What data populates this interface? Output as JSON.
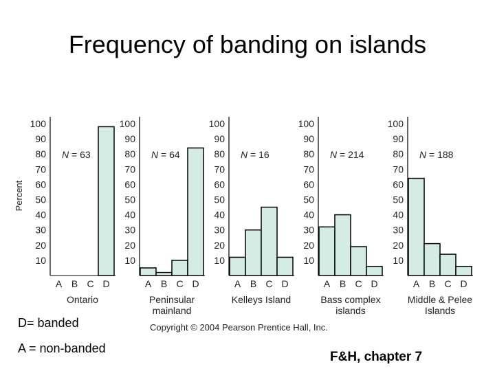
{
  "slide": {
    "title": "Frequency of banding on islands",
    "note_banded": "D= banded",
    "note_nonbanded": "A = non-banded",
    "copyright": "Copyright © 2004 Pearson Prentice Hall, Inc.",
    "footer": "F&H, chapter 7"
  },
  "colors": {
    "bar_fill": "#d4ebe6",
    "bar_stroke": "#000000",
    "axis": "#000000"
  },
  "chart_data": {
    "type": "bar",
    "ylabel": "Percent",
    "ylim": [
      0,
      100
    ],
    "yticks": [
      10,
      20,
      30,
      40,
      50,
      60,
      70,
      80,
      90,
      100
    ],
    "categories": [
      "A",
      "B",
      "C",
      "D"
    ],
    "panels": [
      {
        "label": [
          "Ontario"
        ],
        "n_prefix": "N",
        "n_text": " = 63",
        "values": [
          0,
          0,
          0,
          98
        ]
      },
      {
        "label": [
          "Peninsular",
          "mainland"
        ],
        "n_prefix": "N",
        "n_text": " = 64",
        "values": [
          5,
          2,
          10,
          84
        ]
      },
      {
        "label": [
          "Kelleys Island"
        ],
        "n_prefix": "N",
        "n_text": " = 16",
        "values": [
          12,
          30,
          45,
          12
        ]
      },
      {
        "label": [
          "Bass complex",
          "islands"
        ],
        "n_prefix": "N",
        "n_text": " =  214",
        "values": [
          32,
          40,
          19,
          6
        ]
      },
      {
        "label": [
          "Middle & Pelee",
          "Islands"
        ],
        "n_prefix": "N",
        "n_text": " = 188",
        "values": [
          64,
          21,
          14,
          6
        ]
      }
    ]
  }
}
